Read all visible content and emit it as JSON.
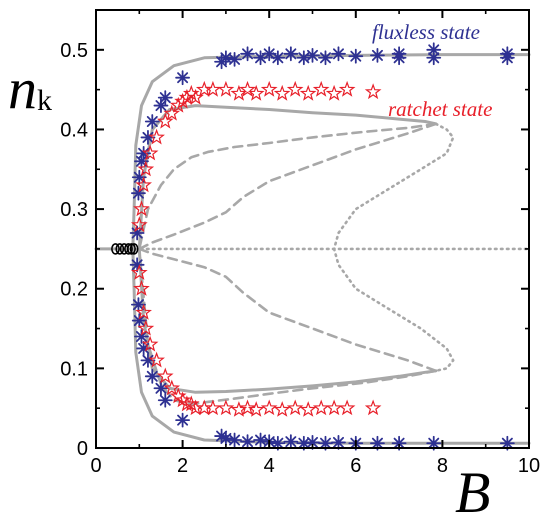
{
  "chart_data": {
    "type": "scatter",
    "title": "",
    "xlabel": "B",
    "ylabel_main": "n",
    "ylabel_sub": "k",
    "xlim": [
      0,
      10
    ],
    "ylim": [
      0,
      0.55
    ],
    "x_ticks": [
      0,
      2,
      4,
      6,
      8,
      10
    ],
    "x_tick_labels": [
      "0",
      "2",
      "4",
      "6",
      "8",
      "10"
    ],
    "y_ticks": [
      0,
      0.1,
      0.2,
      0.3,
      0.4,
      0.5
    ],
    "y_tick_labels": [
      "0",
      "0.1",
      "0.2",
      "0.3",
      "0.4",
      "0.5"
    ],
    "grid": false,
    "annotations": [
      {
        "id": "flux",
        "text": "fluxless state",
        "color": "#2e3192"
      },
      {
        "id": "ratchet",
        "text": "ratchet state",
        "color": "#e8202a"
      }
    ],
    "colors": {
      "flux": "#2e3192",
      "ratchet": "#e8202a",
      "circles": "#000000",
      "theory": "#a8a8a8"
    },
    "series": [
      {
        "marker": "asterisk",
        "color": "#2e3192",
        "points": [
          [
            0.95,
            0.27
          ],
          [
            0.98,
            0.32
          ],
          [
            1.0,
            0.34
          ],
          [
            1.05,
            0.36
          ],
          [
            1.1,
            0.37
          ],
          [
            1.2,
            0.39
          ],
          [
            1.3,
            0.41
          ],
          [
            1.5,
            0.43
          ],
          [
            1.6,
            0.44
          ],
          [
            2.0,
            0.465
          ],
          [
            2.9,
            0.485
          ],
          [
            3.0,
            0.49
          ],
          [
            3.2,
            0.488
          ],
          [
            3.5,
            0.495
          ],
          [
            3.8,
            0.49
          ],
          [
            4.0,
            0.495
          ],
          [
            4.2,
            0.49
          ],
          [
            4.5,
            0.495
          ],
          [
            4.8,
            0.49
          ],
          [
            5.0,
            0.493
          ],
          [
            5.3,
            0.49
          ],
          [
            5.6,
            0.495
          ],
          [
            6.0,
            0.492
          ],
          [
            6.5,
            0.493
          ],
          [
            7.0,
            0.495
          ],
          [
            7.0,
            0.49
          ],
          [
            7.8,
            0.5
          ],
          [
            7.8,
            0.49
          ],
          [
            9.5,
            0.495
          ],
          [
            9.5,
            0.49
          ],
          [
            0.95,
            0.23
          ],
          [
            0.98,
            0.18
          ],
          [
            1.0,
            0.16
          ],
          [
            1.05,
            0.14
          ],
          [
            1.1,
            0.125
          ],
          [
            1.2,
            0.11
          ],
          [
            1.3,
            0.09
          ],
          [
            1.5,
            0.075
          ],
          [
            1.6,
            0.06
          ],
          [
            2.0,
            0.035
          ],
          [
            2.9,
            0.015
          ],
          [
            3.0,
            0.012
          ],
          [
            3.2,
            0.01
          ],
          [
            3.5,
            0.008
          ],
          [
            3.8,
            0.01
          ],
          [
            4.0,
            0.008
          ],
          [
            4.2,
            0.006
          ],
          [
            4.5,
            0.008
          ],
          [
            4.8,
            0.006
          ],
          [
            5.0,
            0.007
          ],
          [
            5.3,
            0.006
          ],
          [
            5.6,
            0.007
          ],
          [
            6.0,
            0.006
          ],
          [
            6.5,
            0.006
          ],
          [
            7.0,
            0.006
          ],
          [
            7.8,
            0.006
          ],
          [
            9.5,
            0.006
          ]
        ]
      },
      {
        "marker": "star",
        "color": "#e8202a",
        "points": [
          [
            1.0,
            0.28
          ],
          [
            1.05,
            0.3
          ],
          [
            1.1,
            0.33
          ],
          [
            1.15,
            0.35
          ],
          [
            1.25,
            0.37
          ],
          [
            1.4,
            0.39
          ],
          [
            1.6,
            0.41
          ],
          [
            1.75,
            0.42
          ],
          [
            1.9,
            0.43
          ],
          [
            2.0,
            0.435
          ],
          [
            2.1,
            0.44
          ],
          [
            2.2,
            0.445
          ],
          [
            2.3,
            0.44
          ],
          [
            2.5,
            0.45
          ],
          [
            2.7,
            0.45
          ],
          [
            3.0,
            0.45
          ],
          [
            3.3,
            0.445
          ],
          [
            3.5,
            0.45
          ],
          [
            3.7,
            0.445
          ],
          [
            4.0,
            0.45
          ],
          [
            4.3,
            0.445
          ],
          [
            4.6,
            0.45
          ],
          [
            4.9,
            0.445
          ],
          [
            5.2,
            0.45
          ],
          [
            5.5,
            0.445
          ],
          [
            5.8,
            0.45
          ],
          [
            6.4,
            0.447
          ],
          [
            1.0,
            0.22
          ],
          [
            1.05,
            0.2
          ],
          [
            1.1,
            0.17
          ],
          [
            1.15,
            0.15
          ],
          [
            1.25,
            0.13
          ],
          [
            1.4,
            0.11
          ],
          [
            1.6,
            0.09
          ],
          [
            1.75,
            0.075
          ],
          [
            1.9,
            0.065
          ],
          [
            2.0,
            0.06
          ],
          [
            2.1,
            0.055
          ],
          [
            2.2,
            0.055
          ],
          [
            2.3,
            0.05
          ],
          [
            2.5,
            0.05
          ],
          [
            2.7,
            0.05
          ],
          [
            3.0,
            0.05
          ],
          [
            3.3,
            0.048
          ],
          [
            3.5,
            0.05
          ],
          [
            3.7,
            0.048
          ],
          [
            4.0,
            0.05
          ],
          [
            4.3,
            0.048
          ],
          [
            4.6,
            0.05
          ],
          [
            4.9,
            0.048
          ],
          [
            5.2,
            0.05
          ],
          [
            5.5,
            0.05
          ],
          [
            5.8,
            0.05
          ],
          [
            6.4,
            0.05
          ]
        ]
      },
      {
        "marker": "circle",
        "color": "#000000",
        "points": [
          [
            0.45,
            0.25
          ],
          [
            0.55,
            0.25
          ],
          [
            0.65,
            0.25
          ],
          [
            0.75,
            0.25
          ],
          [
            0.82,
            0.25
          ],
          [
            0.88,
            0.25
          ]
        ]
      }
    ],
    "curves": [
      {
        "style": "solid",
        "points": [
          [
            0,
            0.25
          ],
          [
            0.85,
            0.25
          ],
          [
            0.88,
            0.3
          ],
          [
            0.92,
            0.38
          ],
          [
            1.05,
            0.43
          ],
          [
            1.3,
            0.46
          ],
          [
            1.8,
            0.48
          ],
          [
            2.5,
            0.49
          ],
          [
            4,
            0.492
          ],
          [
            6,
            0.493
          ],
          [
            8,
            0.494
          ],
          [
            10,
            0.494
          ]
        ]
      },
      {
        "style": "solid",
        "points": [
          [
            0.85,
            0.25
          ],
          [
            0.88,
            0.2
          ],
          [
            0.92,
            0.12
          ],
          [
            1.05,
            0.07
          ],
          [
            1.3,
            0.04
          ],
          [
            1.8,
            0.02
          ],
          [
            2.5,
            0.01
          ],
          [
            4,
            0.007
          ],
          [
            6,
            0.006
          ],
          [
            8,
            0.006
          ],
          [
            10,
            0.006
          ]
        ]
      },
      {
        "style": "solid",
        "points": [
          [
            1.0,
            0.25
          ],
          [
            1.1,
            0.34
          ],
          [
            1.3,
            0.4
          ],
          [
            1.7,
            0.425
          ],
          [
            2.3,
            0.43
          ],
          [
            3,
            0.428
          ],
          [
            4,
            0.425
          ],
          [
            5,
            0.421
          ],
          [
            6,
            0.418
          ],
          [
            7,
            0.413
          ],
          [
            7.6,
            0.41
          ],
          [
            7.85,
            0.407
          ]
        ]
      },
      {
        "style": "solid",
        "points": [
          [
            1.0,
            0.25
          ],
          [
            1.1,
            0.16
          ],
          [
            1.3,
            0.1
          ],
          [
            1.7,
            0.075
          ],
          [
            2.3,
            0.07
          ],
          [
            3,
            0.071
          ],
          [
            4,
            0.074
          ],
          [
            5,
            0.078
          ],
          [
            6,
            0.083
          ],
          [
            7,
            0.09
          ],
          [
            7.6,
            0.095
          ],
          [
            7.85,
            0.097
          ]
        ]
      },
      {
        "style": "dashed",
        "points": [
          [
            7.85,
            0.407
          ],
          [
            7.2,
            0.395
          ],
          [
            6,
            0.375
          ],
          [
            5,
            0.355
          ],
          [
            4,
            0.335
          ],
          [
            3.4,
            0.315
          ],
          [
            3.0,
            0.296
          ],
          [
            2.5,
            0.283
          ],
          [
            1.8,
            0.268
          ],
          [
            1.3,
            0.258
          ],
          [
            1.0,
            0.25
          ]
        ]
      },
      {
        "style": "dashed",
        "points": [
          [
            7.85,
            0.407
          ],
          [
            7.2,
            0.402
          ],
          [
            6.2,
            0.397
          ],
          [
            5,
            0.39
          ],
          [
            4,
            0.383
          ],
          [
            3.2,
            0.378
          ],
          [
            2.6,
            0.372
          ],
          [
            2.2,
            0.365
          ],
          [
            1.8,
            0.35
          ],
          [
            1.5,
            0.33
          ],
          [
            1.2,
            0.3
          ],
          [
            1.0,
            0.25
          ]
        ]
      },
      {
        "style": "dashed",
        "points": [
          [
            7.85,
            0.097
          ],
          [
            7.2,
            0.11
          ],
          [
            6,
            0.13
          ],
          [
            5,
            0.15
          ],
          [
            4,
            0.17
          ],
          [
            3.4,
            0.195
          ],
          [
            3.0,
            0.215
          ],
          [
            2.5,
            0.227
          ],
          [
            1.8,
            0.237
          ],
          [
            1.3,
            0.244
          ],
          [
            1.0,
            0.25
          ]
        ]
      },
      {
        "style": "dashed",
        "points": [
          [
            7.85,
            0.097
          ],
          [
            7.2,
            0.09
          ],
          [
            6.2,
            0.082
          ],
          [
            5,
            0.075
          ],
          [
            4,
            0.068
          ],
          [
            3.2,
            0.062
          ],
          [
            2.6,
            0.058
          ],
          [
            2.2,
            0.055
          ],
          [
            1.8,
            0.06
          ],
          [
            1.5,
            0.08
          ],
          [
            1.2,
            0.13
          ],
          [
            1.0,
            0.25
          ]
        ]
      },
      {
        "style": "dotted",
        "points": [
          [
            7.85,
            0.407
          ],
          [
            8.1,
            0.4
          ],
          [
            8.25,
            0.39
          ],
          [
            8.1,
            0.37
          ],
          [
            7.5,
            0.35
          ],
          [
            6.6,
            0.32
          ],
          [
            6.0,
            0.3
          ],
          [
            5.6,
            0.27
          ],
          [
            5.5,
            0.25
          ],
          [
            5.6,
            0.23
          ],
          [
            6.0,
            0.2
          ],
          [
            6.6,
            0.18
          ],
          [
            7.5,
            0.15
          ],
          [
            8.1,
            0.125
          ],
          [
            8.25,
            0.11
          ],
          [
            8.1,
            0.1
          ],
          [
            7.85,
            0.097
          ]
        ]
      },
      {
        "style": "dotted",
        "points": [
          [
            0.9,
            0.25
          ],
          [
            10,
            0.25
          ]
        ]
      }
    ]
  }
}
